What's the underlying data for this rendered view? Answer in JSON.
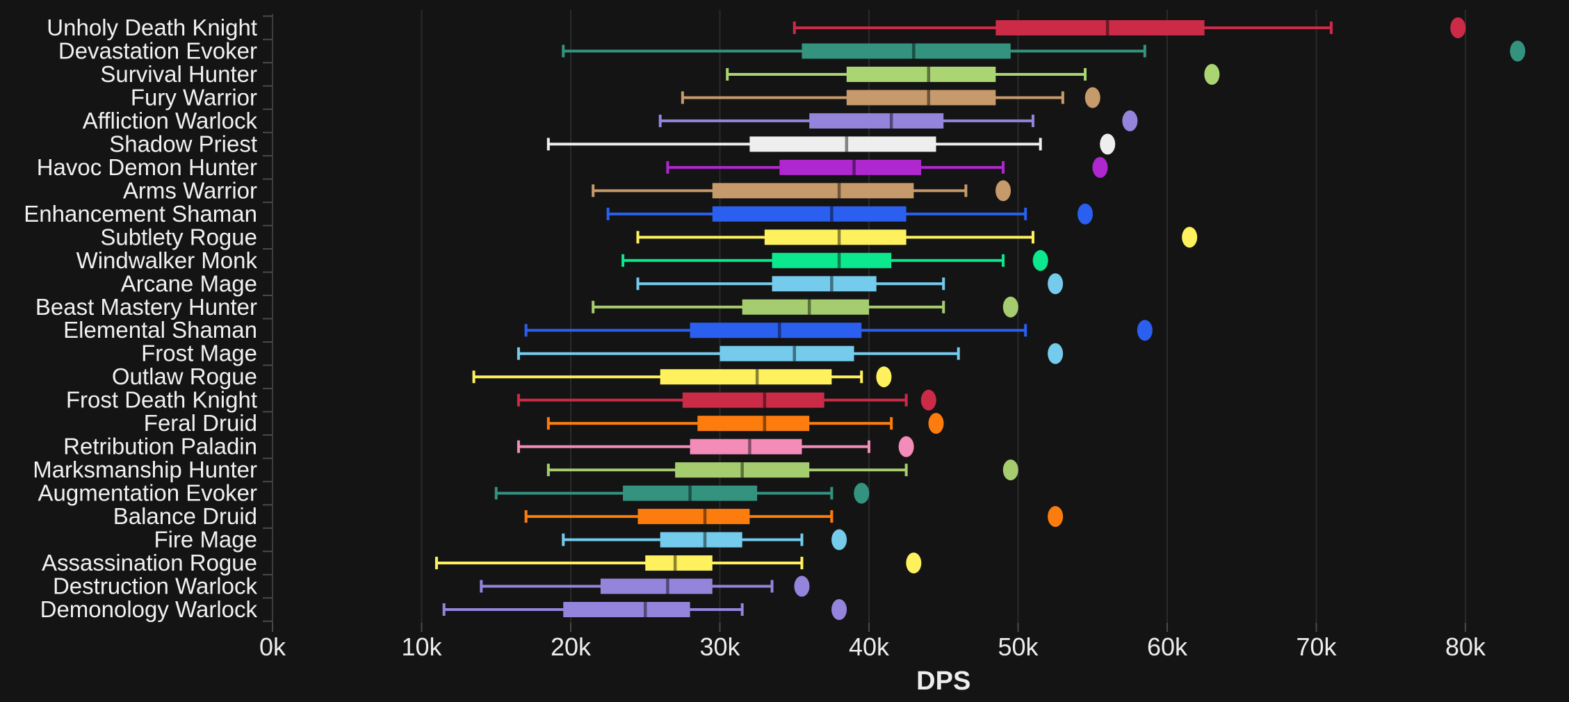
{
  "chart_data": {
    "type": "boxplot",
    "title": "",
    "xlabel": "DPS",
    "values_unit": "thousands of DPS",
    "xlim_k": [
      0,
      87
    ],
    "x_ticks_k": [
      0,
      10,
      20,
      30,
      40,
      50,
      60,
      70,
      80
    ],
    "x_tick_labels": [
      "0k",
      "10k",
      "20k",
      "30k",
      "40k",
      "50k",
      "60k",
      "70k",
      "80k"
    ],
    "grid": true,
    "legend": "none",
    "categories": [
      "Unholy Death Knight",
      "Devastation Evoker",
      "Survival Hunter",
      "Fury Warrior",
      "Affliction Warlock",
      "Shadow Priest",
      "Havoc Demon Hunter",
      "Arms Warrior",
      "Enhancement Shaman",
      "Subtlety Rogue",
      "Windwalker Monk",
      "Arcane Mage",
      "Beast Mastery Hunter",
      "Elemental Shaman",
      "Frost Mage",
      "Outlaw Rogue",
      "Frost Death Knight",
      "Feral Druid",
      "Retribution Paladin",
      "Marksmanship Hunter",
      "Augmentation Evoker",
      "Balance Druid",
      "Fire Mage",
      "Assassination Rogue",
      "Destruction Warlock",
      "Demonology Warlock"
    ],
    "series": [
      {
        "name": "Unholy Death Knight",
        "color": "#CC2B47",
        "whisker_low": 35.0,
        "q1": 48.5,
        "median": 56.0,
        "q3": 62.5,
        "whisker_high": 71.0,
        "outlier": 79.5
      },
      {
        "name": "Devastation Evoker",
        "color": "#33937F",
        "whisker_low": 19.5,
        "q1": 35.5,
        "median": 43.0,
        "q3": 49.5,
        "whisker_high": 58.5,
        "outlier": 83.5
      },
      {
        "name": "Survival Hunter",
        "color": "#ABD473",
        "whisker_low": 30.5,
        "q1": 38.5,
        "median": 44.0,
        "q3": 48.5,
        "whisker_high": 54.5,
        "outlier": 63.0
      },
      {
        "name": "Fury Warrior",
        "color": "#C79A6C",
        "whisker_low": 27.5,
        "q1": 38.5,
        "median": 44.0,
        "q3": 48.5,
        "whisker_high": 53.0,
        "outlier": 55.0
      },
      {
        "name": "Affliction Warlock",
        "color": "#9584DC",
        "whisker_low": 26.0,
        "q1": 36.0,
        "median": 41.5,
        "q3": 45.0,
        "whisker_high": 51.0,
        "outlier": 57.5
      },
      {
        "name": "Shadow Priest",
        "color": "#EEEEEE",
        "whisker_low": 18.5,
        "q1": 32.0,
        "median": 38.5,
        "q3": 44.5,
        "whisker_high": 51.5,
        "outlier": 56.0
      },
      {
        "name": "Havoc Demon Hunter",
        "color": "#AF27CE",
        "whisker_low": 26.5,
        "q1": 34.0,
        "median": 39.0,
        "q3": 43.5,
        "whisker_high": 49.0,
        "outlier": 55.5
      },
      {
        "name": "Arms Warrior",
        "color": "#C79A6C",
        "whisker_low": 21.5,
        "q1": 29.5,
        "median": 38.0,
        "q3": 43.0,
        "whisker_high": 46.5,
        "outlier": 49.0
      },
      {
        "name": "Enhancement Shaman",
        "color": "#2A5FF0",
        "whisker_low": 22.5,
        "q1": 29.5,
        "median": 37.5,
        "q3": 42.5,
        "whisker_high": 50.5,
        "outlier": 54.5
      },
      {
        "name": "Subtlety Rogue",
        "color": "#FFF15E",
        "whisker_low": 24.5,
        "q1": 33.0,
        "median": 38.0,
        "q3": 42.5,
        "whisker_high": 51.0,
        "outlier": 61.5
      },
      {
        "name": "Windwalker Monk",
        "color": "#0CE88D",
        "whisker_low": 23.5,
        "q1": 33.5,
        "median": 38.0,
        "q3": 41.5,
        "whisker_high": 49.0,
        "outlier": 51.5
      },
      {
        "name": "Arcane Mage",
        "color": "#74CBEC",
        "whisker_low": 24.5,
        "q1": 33.5,
        "median": 37.5,
        "q3": 40.5,
        "whisker_high": 45.0,
        "outlier": 52.5
      },
      {
        "name": "Beast Mastery Hunter",
        "color": "#A6CC70",
        "whisker_low": 21.5,
        "q1": 31.5,
        "median": 36.0,
        "q3": 40.0,
        "whisker_high": 45.0,
        "outlier": 49.5
      },
      {
        "name": "Elemental Shaman",
        "color": "#2A5FF0",
        "whisker_low": 17.0,
        "q1": 28.0,
        "median": 34.0,
        "q3": 39.5,
        "whisker_high": 50.5,
        "outlier": 58.5
      },
      {
        "name": "Frost Mage",
        "color": "#74CBEC",
        "whisker_low": 16.5,
        "q1": 30.0,
        "median": 35.0,
        "q3": 39.0,
        "whisker_high": 46.0,
        "outlier": 52.5
      },
      {
        "name": "Outlaw Rogue",
        "color": "#FFF15E",
        "whisker_low": 13.5,
        "q1": 26.0,
        "median": 32.5,
        "q3": 37.5,
        "whisker_high": 39.5,
        "outlier": 41.0
      },
      {
        "name": "Frost Death Knight",
        "color": "#CC2B47",
        "whisker_low": 16.5,
        "q1": 27.5,
        "median": 33.0,
        "q3": 37.0,
        "whisker_high": 42.5,
        "outlier": 44.0
      },
      {
        "name": "Feral Druid",
        "color": "#FC7D0D",
        "whisker_low": 18.5,
        "q1": 28.5,
        "median": 33.0,
        "q3": 36.0,
        "whisker_high": 41.5,
        "outlier": 44.5
      },
      {
        "name": "Retribution Paladin",
        "color": "#F48CBA",
        "whisker_low": 16.5,
        "q1": 28.0,
        "median": 32.0,
        "q3": 35.5,
        "whisker_high": 40.0,
        "outlier": 42.5
      },
      {
        "name": "Marksmanship Hunter",
        "color": "#A6CC70",
        "whisker_low": 18.5,
        "q1": 27.0,
        "median": 31.5,
        "q3": 36.0,
        "whisker_high": 42.5,
        "outlier": 49.5
      },
      {
        "name": "Augmentation Evoker",
        "color": "#33937F",
        "whisker_low": 15.0,
        "q1": 23.5,
        "median": 28.0,
        "q3": 32.5,
        "whisker_high": 37.5,
        "outlier": 39.5
      },
      {
        "name": "Balance Druid",
        "color": "#FC7D0D",
        "whisker_low": 17.0,
        "q1": 24.5,
        "median": 29.0,
        "q3": 32.0,
        "whisker_high": 37.5,
        "outlier": 52.5
      },
      {
        "name": "Fire Mage",
        "color": "#74CBEC",
        "whisker_low": 19.5,
        "q1": 26.0,
        "median": 29.0,
        "q3": 31.5,
        "whisker_high": 35.5,
        "outlier": 38.0
      },
      {
        "name": "Assassination Rogue",
        "color": "#FFF15E",
        "whisker_low": 11.0,
        "q1": 25.0,
        "median": 27.0,
        "q3": 29.5,
        "whisker_high": 35.5,
        "outlier": 43.0
      },
      {
        "name": "Destruction Warlock",
        "color": "#9584DC",
        "whisker_low": 14.0,
        "q1": 22.0,
        "median": 26.5,
        "q3": 29.5,
        "whisker_high": 33.5,
        "outlier": 35.5
      },
      {
        "name": "Demonology Warlock",
        "color": "#9584DC",
        "whisker_low": 11.5,
        "q1": 19.5,
        "median": 25.0,
        "q3": 28.0,
        "whisker_high": 31.5,
        "outlier": 38.0
      }
    ]
  },
  "colors": {
    "background": "#141414",
    "gridline": "#2A2A2A",
    "axis_line": "#3C3C3C",
    "axis_tick": "#4A4A4A",
    "tick_text": "#EDEDED",
    "category_text": "#F1F1F1",
    "median_overlay": "rgba(0,0,0,0.45)"
  }
}
